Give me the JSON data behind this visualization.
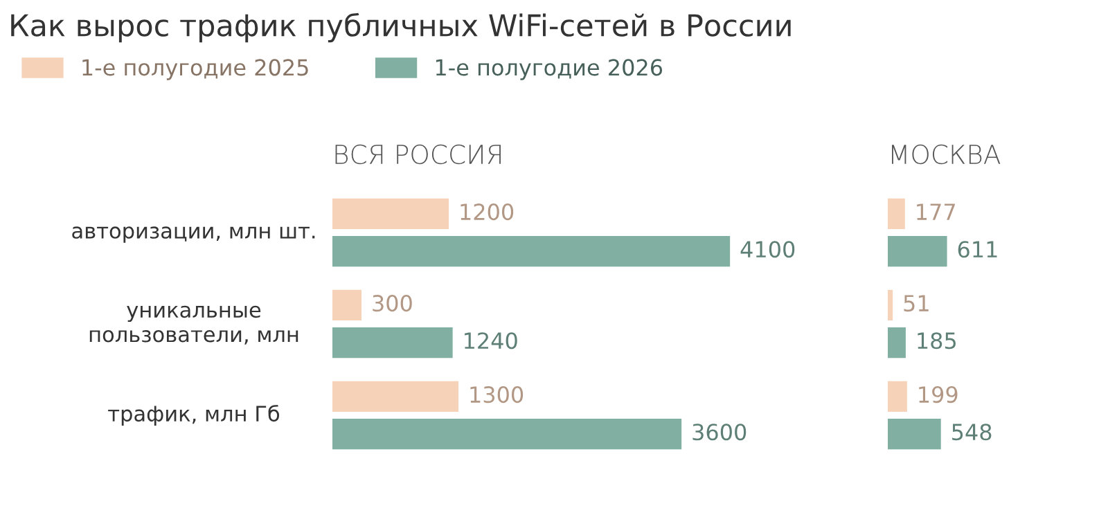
{
  "chart_data": [
    {
      "type": "bar",
      "orientation": "horizontal",
      "title": "Как вырос трафик публичных WiFi-сетей в России",
      "subtitle": "ВСЯ РОССИЯ",
      "categories": [
        "авторизации, млн шт.",
        "уникальные\nпользователи, млн",
        "трафик, млн Гб"
      ],
      "series": [
        {
          "name": "1-е полугодие 2025",
          "color": "#f6d2b8",
          "values": [
            1200,
            300,
            1300
          ]
        },
        {
          "name": "1-е полугодие 2026",
          "color": "#81b0a3",
          "values": [
            4100,
            1240,
            3600
          ]
        }
      ],
      "data_labels": true,
      "tick_labels": "y",
      "legend": "top left"
    },
    {
      "type": "bar",
      "orientation": "horizontal",
      "subtitle": "МОСКВА",
      "categories": [
        null,
        null,
        null
      ],
      "series": [
        {
          "color": "#f6d2b8",
          "values": [
            177,
            51,
            199
          ]
        },
        {
          "color": "#81b0a3",
          "values": [
            611,
            185,
            548
          ]
        }
      ],
      "data_labels": true,
      "tick_labels": false
    }
  ]
}
